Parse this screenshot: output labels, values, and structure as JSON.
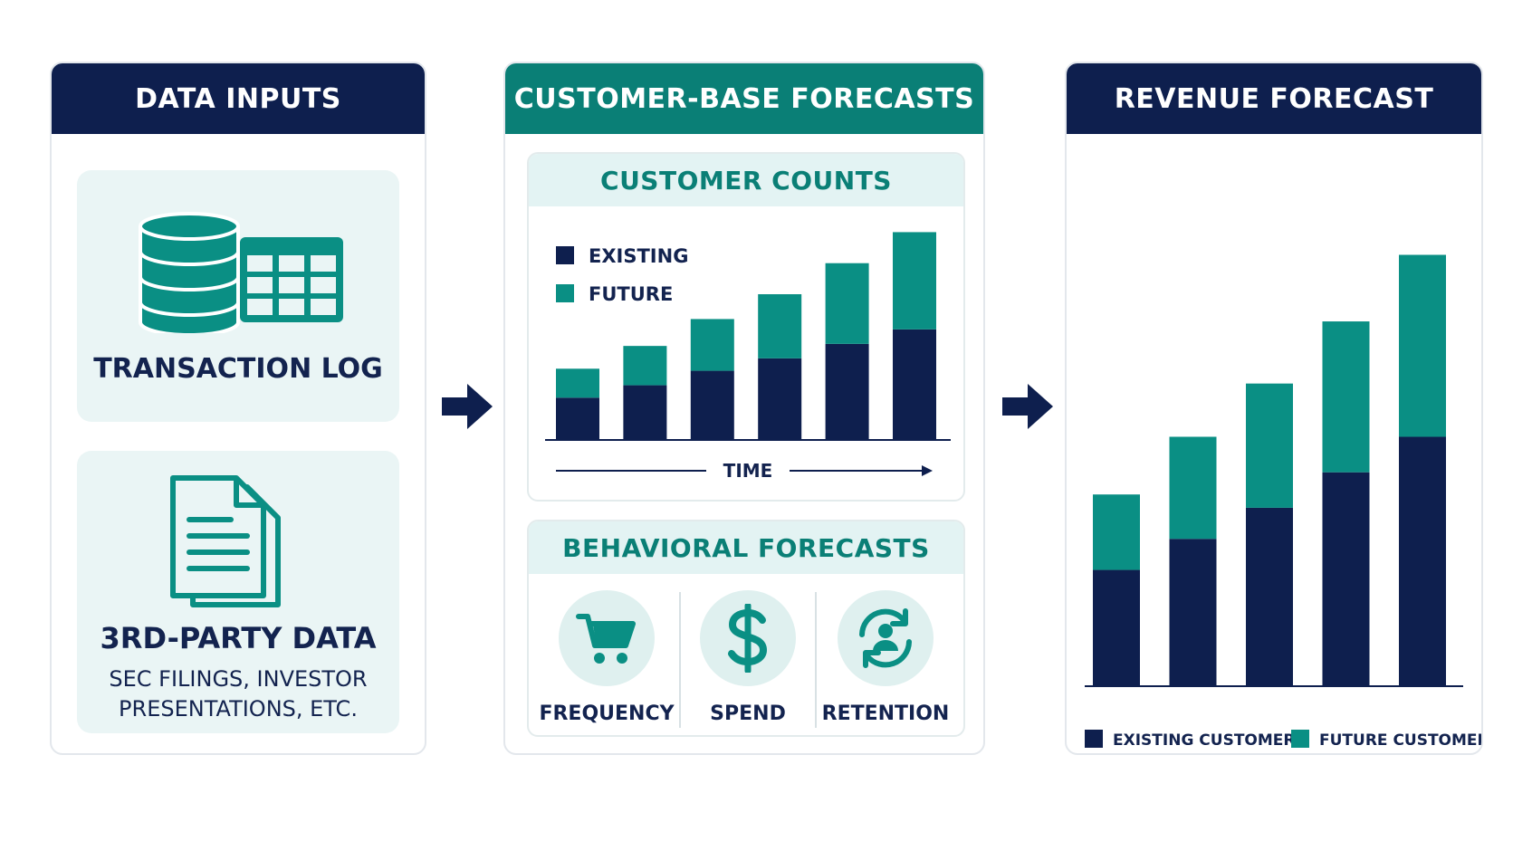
{
  "inputs": {
    "header": "DATA INPUTS",
    "transaction_title": "TRANSACTION LOG",
    "third_party_title": "3RD-PARTY DATA",
    "third_party_sub_line1": "SEC FILINGS, INVESTOR",
    "third_party_sub_line2": "PRESENTATIONS, ETC."
  },
  "customer": {
    "header": "CUSTOMER-BASE FORECASTS",
    "counts_title": "CUSTOMER COUNTS",
    "legend_existing": "EXISTING",
    "legend_future": "FUTURE",
    "axis_label": "TIME",
    "behavioral_title": "BEHAVIORAL FORECASTS",
    "behaviors": [
      "FREQUENCY",
      "SPEND",
      "RETENTION"
    ]
  },
  "revenue": {
    "header": "REVENUE FORECAST",
    "legend_existing": "EXISTING CUSTOMERS",
    "legend_future": "FUTURE CUSTOMERS"
  },
  "colors": {
    "navy": "#0e1f4e",
    "teal": "#0a8f84",
    "teal_dark": "#0a7f76",
    "light_teal": "#eaf5f5"
  },
  "icons": [
    "database-icon",
    "table-icon",
    "document-icon",
    "arrow-right-icon",
    "cart-icon",
    "dollar-icon",
    "retention-icon"
  ],
  "chart_data": [
    {
      "type": "bar",
      "title": "CUSTOMER COUNTS",
      "stacked": true,
      "xlabel": "TIME",
      "categories": [
        "",
        "",
        "",
        "",
        "",
        ""
      ],
      "series": [
        {
          "name": "EXISTING",
          "values": [
            2.0,
            2.6,
            3.3,
            3.9,
            4.6,
            5.3
          ]
        },
        {
          "name": "FUTURE",
          "values": [
            1.4,
            1.9,
            2.5,
            3.1,
            3.9,
            4.7
          ]
        }
      ],
      "ylim": [
        0,
        10.5
      ],
      "legend": "top-left"
    },
    {
      "type": "bar",
      "title": "REVENUE FORECAST",
      "stacked": true,
      "categories": [
        "",
        "",
        "",
        "",
        ""
      ],
      "series": [
        {
          "name": "EXISTING CUSTOMERS",
          "values": [
            2.6,
            3.3,
            4.0,
            4.8,
            5.6
          ]
        },
        {
          "name": "FUTURE CUSTOMERS",
          "values": [
            1.7,
            2.3,
            2.8,
            3.4,
            4.1
          ]
        }
      ],
      "ylim": [
        0,
        10.2
      ],
      "legend": "bottom"
    }
  ]
}
